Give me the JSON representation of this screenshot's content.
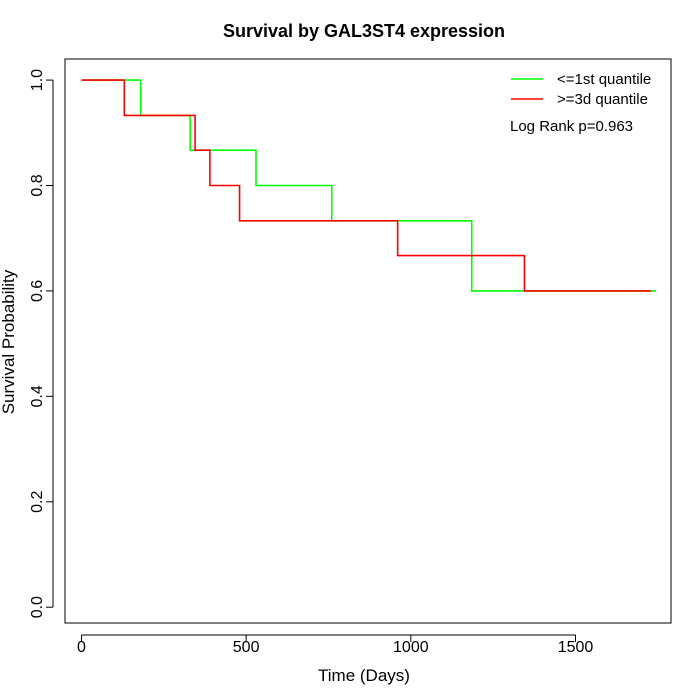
{
  "chart_data": {
    "type": "line",
    "title": "Survival by GAL3ST4 expression",
    "xlabel": "Time (Days)",
    "ylabel": "Survival Probability",
    "xlim": [
      -50,
      1790
    ],
    "ylim": [
      -0.03,
      1.04
    ],
    "xticks": [
      0,
      500,
      1000,
      1500
    ],
    "yticks": [
      0.0,
      0.2,
      0.4,
      0.6,
      0.8,
      1.0
    ],
    "xtick_labels": [
      "0",
      "500",
      "1000",
      "1500"
    ],
    "ytick_labels": [
      "0.0",
      "0.2",
      "0.4",
      "0.6",
      "0.8",
      "1.0"
    ],
    "grid": false,
    "legend_position": "top-right",
    "annotation": "Log Rank p=0.963",
    "series": [
      {
        "name": "<=1st quantile",
        "color": "#00ff00",
        "step_x": [
          0,
          180,
          330,
          530,
          760,
          1185,
          1745
        ],
        "step_y": [
          1.0,
          0.933,
          0.867,
          0.8,
          0.733,
          0.6,
          0.6
        ]
      },
      {
        "name": ">=3d quantile",
        "color": "#ff0000",
        "step_x": [
          0,
          130,
          345,
          390,
          480,
          960,
          1345,
          1730
        ],
        "step_y": [
          1.0,
          0.933,
          0.867,
          0.8,
          0.733,
          0.667,
          0.6,
          0.6
        ]
      }
    ]
  }
}
